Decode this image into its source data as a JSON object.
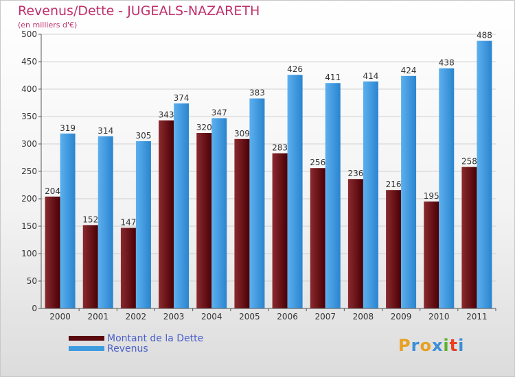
{
  "title": "Revenus/Dette - JUGEALS-NAZARETH",
  "subtitle": "(en milliers d'€)",
  "legend": [
    {
      "label": "Montant de la Dette",
      "color": "#5a0a0f"
    },
    {
      "label": "Revenus",
      "color": "#3d9be0"
    }
  ],
  "logo": {
    "text": "Proxiti",
    "letters": [
      "P",
      "r",
      "o",
      "x",
      "i",
      "t",
      "i"
    ],
    "colors": [
      "#e8a020",
      "#3b8fd6",
      "#e8a020",
      "#3b8fd6",
      "#5fb030",
      "#e84020",
      "#3b8fd6"
    ]
  },
  "chart_data": {
    "type": "bar",
    "categories": [
      "2000",
      "2001",
      "2002",
      "2003",
      "2004",
      "2005",
      "2006",
      "2007",
      "2008",
      "2009",
      "2010",
      "2011"
    ],
    "series": [
      {
        "name": "Montant de la Dette",
        "values": [
          204,
          152,
          147,
          343,
          320,
          309,
          283,
          256,
          236,
          216,
          195,
          258
        ],
        "color": "#5a0a0f"
      },
      {
        "name": "Revenus",
        "values": [
          319,
          314,
          305,
          374,
          347,
          383,
          426,
          411,
          414,
          424,
          438,
          488
        ],
        "color": "#3d9be0"
      }
    ],
    "ylim": [
      0,
      500
    ],
    "yticks": [
      0,
      50,
      100,
      150,
      200,
      250,
      300,
      350,
      400,
      450,
      500
    ],
    "grid": true
  }
}
